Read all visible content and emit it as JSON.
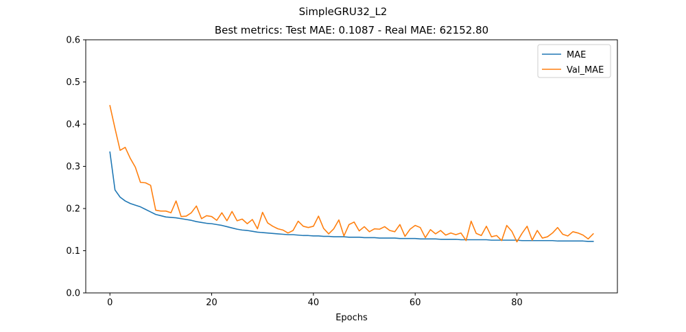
{
  "figure": {
    "suptitle": "SimpleGRU32_L2"
  },
  "chart_data": {
    "type": "line",
    "title": "Best metrics: Test MAE: 0.1087 - Real MAE: 62152.80",
    "xlabel": "Epochs",
    "ylabel": "",
    "xlim": [
      -4.75,
      99.75
    ],
    "ylim": [
      0.0,
      0.6
    ],
    "xticks": [
      0,
      20,
      40,
      60,
      80
    ],
    "yticks": [
      0.0,
      0.1,
      0.2,
      0.3,
      0.4,
      0.5,
      0.6
    ],
    "grid": false,
    "legend_position": "top-right",
    "series": [
      {
        "name": "MAE",
        "color": "#1f77b4",
        "values": [
          0.334,
          0.244,
          0.227,
          0.218,
          0.212,
          0.208,
          0.204,
          0.198,
          0.192,
          0.186,
          0.183,
          0.18,
          0.179,
          0.178,
          0.176,
          0.174,
          0.172,
          0.169,
          0.167,
          0.165,
          0.164,
          0.162,
          0.16,
          0.157,
          0.154,
          0.151,
          0.149,
          0.148,
          0.146,
          0.144,
          0.143,
          0.142,
          0.141,
          0.14,
          0.139,
          0.138,
          0.138,
          0.137,
          0.136,
          0.136,
          0.135,
          0.135,
          0.134,
          0.134,
          0.133,
          0.133,
          0.133,
          0.132,
          0.132,
          0.132,
          0.131,
          0.131,
          0.131,
          0.13,
          0.13,
          0.13,
          0.13,
          0.129,
          0.129,
          0.129,
          0.129,
          0.128,
          0.128,
          0.128,
          0.128,
          0.127,
          0.127,
          0.127,
          0.127,
          0.126,
          0.126,
          0.126,
          0.126,
          0.126,
          0.126,
          0.125,
          0.125,
          0.125,
          0.125,
          0.125,
          0.125,
          0.124,
          0.124,
          0.124,
          0.124,
          0.124,
          0.124,
          0.124,
          0.123,
          0.123,
          0.123,
          0.123,
          0.123,
          0.123,
          0.122,
          0.122
        ]
      },
      {
        "name": "Val_MAE",
        "color": "#ff7f0e",
        "values": [
          0.444,
          0.39,
          0.338,
          0.345,
          0.319,
          0.298,
          0.262,
          0.261,
          0.255,
          0.196,
          0.194,
          0.194,
          0.19,
          0.218,
          0.181,
          0.182,
          0.19,
          0.206,
          0.176,
          0.183,
          0.181,
          0.172,
          0.19,
          0.171,
          0.193,
          0.171,
          0.175,
          0.164,
          0.174,
          0.152,
          0.191,
          0.166,
          0.158,
          0.152,
          0.149,
          0.142,
          0.148,
          0.17,
          0.158,
          0.155,
          0.158,
          0.182,
          0.153,
          0.14,
          0.152,
          0.173,
          0.135,
          0.162,
          0.168,
          0.147,
          0.157,
          0.145,
          0.152,
          0.151,
          0.157,
          0.148,
          0.145,
          0.162,
          0.134,
          0.151,
          0.16,
          0.155,
          0.131,
          0.15,
          0.14,
          0.148,
          0.137,
          0.142,
          0.138,
          0.142,
          0.124,
          0.17,
          0.141,
          0.136,
          0.158,
          0.133,
          0.136,
          0.124,
          0.16,
          0.146,
          0.121,
          0.141,
          0.158,
          0.125,
          0.148,
          0.13,
          0.133,
          0.142,
          0.155,
          0.139,
          0.135,
          0.145,
          0.142,
          0.137,
          0.128,
          0.14
        ]
      }
    ]
  }
}
